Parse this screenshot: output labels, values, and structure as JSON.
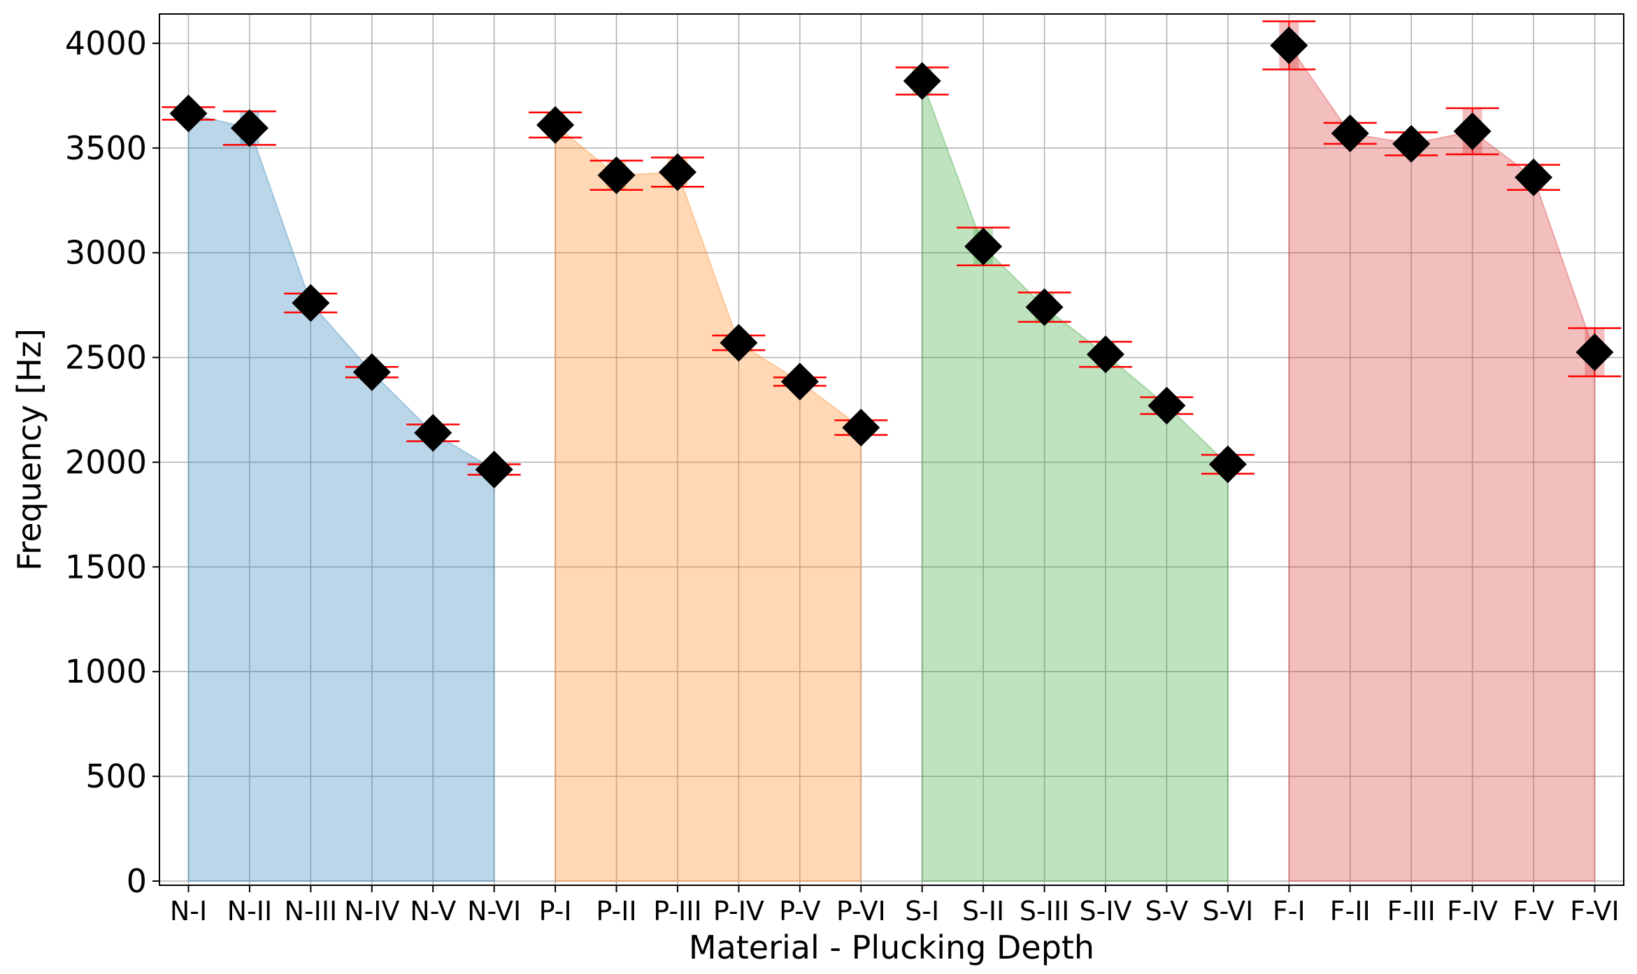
{
  "chart_data": {
    "type": "area",
    "title": "",
    "xlabel": "Material - Plucking Depth",
    "ylabel": "Frequency [Hz]",
    "ylim": [
      -20,
      4140
    ],
    "yticks": [
      0,
      500,
      1000,
      1500,
      2000,
      2500,
      3000,
      3500,
      4000
    ],
    "grid": true,
    "legend": "none",
    "categories": [
      "N-I",
      "N-II",
      "N-III",
      "N-IV",
      "N-V",
      "N-VI",
      "P-I",
      "P-II",
      "P-III",
      "P-IV",
      "P-V",
      "P-VI",
      "S-I",
      "S-II",
      "S-III",
      "S-IV",
      "S-V",
      "S-VI",
      "F-I",
      "F-II",
      "F-III",
      "F-IV",
      "F-V",
      "F-VI"
    ],
    "series": [
      {
        "color": "#1f77b4",
        "points": [
          {
            "x": "N-I",
            "y": 3665,
            "err": 30
          },
          {
            "x": "N-II",
            "y": 3595,
            "err": 80
          },
          {
            "x": "N-III",
            "y": 2760,
            "err": 45
          },
          {
            "x": "N-IV",
            "y": 2430,
            "err": 25
          },
          {
            "x": "N-V",
            "y": 2140,
            "err": 40
          },
          {
            "x": "N-VI",
            "y": 1965,
            "err": 25
          }
        ]
      },
      {
        "color": "#ff7f0e",
        "points": [
          {
            "x": "P-I",
            "y": 3610,
            "err": 60
          },
          {
            "x": "P-II",
            "y": 3370,
            "err": 70
          },
          {
            "x": "P-III",
            "y": 3385,
            "err": 70
          },
          {
            "x": "P-IV",
            "y": 2570,
            "err": 35
          },
          {
            "x": "P-V",
            "y": 2385,
            "err": 20
          },
          {
            "x": "P-VI",
            "y": 2165,
            "err": 35
          }
        ]
      },
      {
        "color": "#2ca02c",
        "points": [
          {
            "x": "S-I",
            "y": 3820,
            "err": 65
          },
          {
            "x": "S-II",
            "y": 3030,
            "err": 90
          },
          {
            "x": "S-III",
            "y": 2740,
            "err": 70
          },
          {
            "x": "S-IV",
            "y": 2515,
            "err": 60
          },
          {
            "x": "S-V",
            "y": 2270,
            "err": 40
          },
          {
            "x": "S-VI",
            "y": 1990,
            "err": 45
          }
        ]
      },
      {
        "color": "#d62728",
        "points": [
          {
            "x": "F-I",
            "y": 3990,
            "err": 115
          },
          {
            "x": "F-II",
            "y": 3570,
            "err": 50
          },
          {
            "x": "F-III",
            "y": 3520,
            "err": 55
          },
          {
            "x": "F-IV",
            "y": 3580,
            "err": 110
          },
          {
            "x": "F-V",
            "y": 3360,
            "err": 60
          },
          {
            "x": "F-VI",
            "y": 2525,
            "err": 115
          }
        ]
      }
    ],
    "marker": "diamond",
    "marker_color": "#000000",
    "errorbar_color": "#ff0000",
    "fill_alpha": 0.3,
    "grid_color": "#b0b0b0"
  }
}
